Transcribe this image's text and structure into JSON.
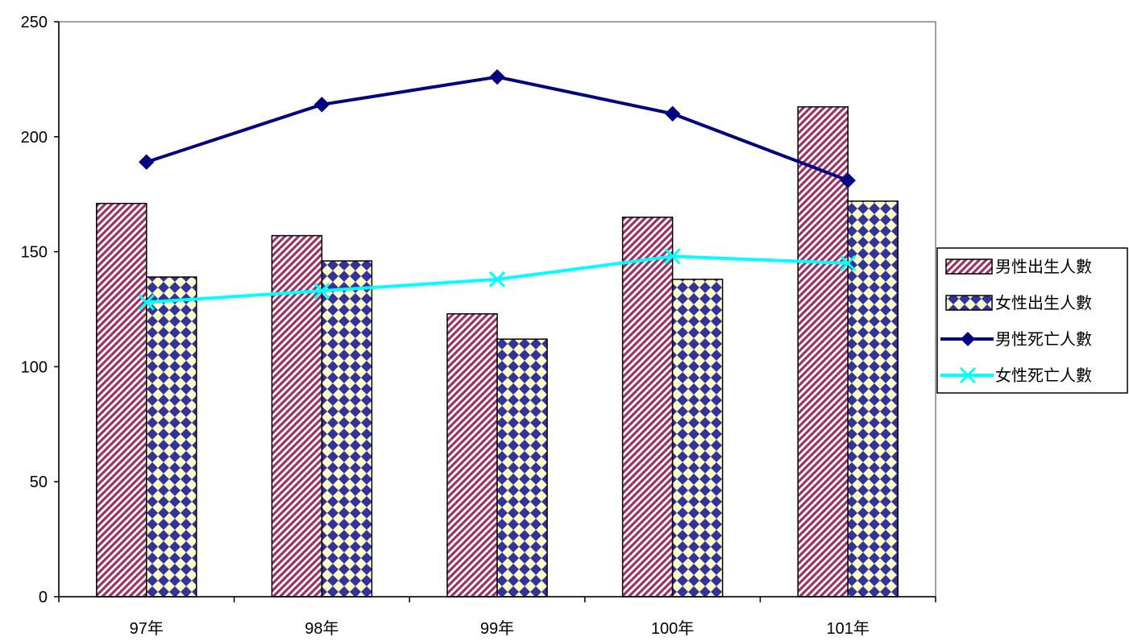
{
  "chart_data": {
    "type": "bar",
    "categories": [
      "97年",
      "98年",
      "99年",
      "100年",
      "101年"
    ],
    "ylim": [
      0,
      250
    ],
    "yticks": [
      0,
      50,
      100,
      150,
      200,
      250
    ],
    "grid": false,
    "legend_position": "right",
    "bar_series": [
      {
        "name": "男性出生人數",
        "values": [
          171,
          157,
          123,
          165,
          213
        ],
        "color": "#993366",
        "pattern": "diagonal-stripes"
      },
      {
        "name": "女性出生人數",
        "values": [
          139,
          146,
          112,
          138,
          172
        ],
        "color": "#333399",
        "pattern": "diamond-checker"
      }
    ],
    "line_series": [
      {
        "name": "男性死亡人數",
        "values": [
          189,
          214,
          226,
          210,
          181
        ],
        "color": "#000080",
        "marker": "diamond"
      },
      {
        "name": "女性死亡人數",
        "values": [
          128,
          133,
          138,
          148,
          145
        ],
        "color": "#00ffff",
        "marker": "x"
      }
    ]
  }
}
